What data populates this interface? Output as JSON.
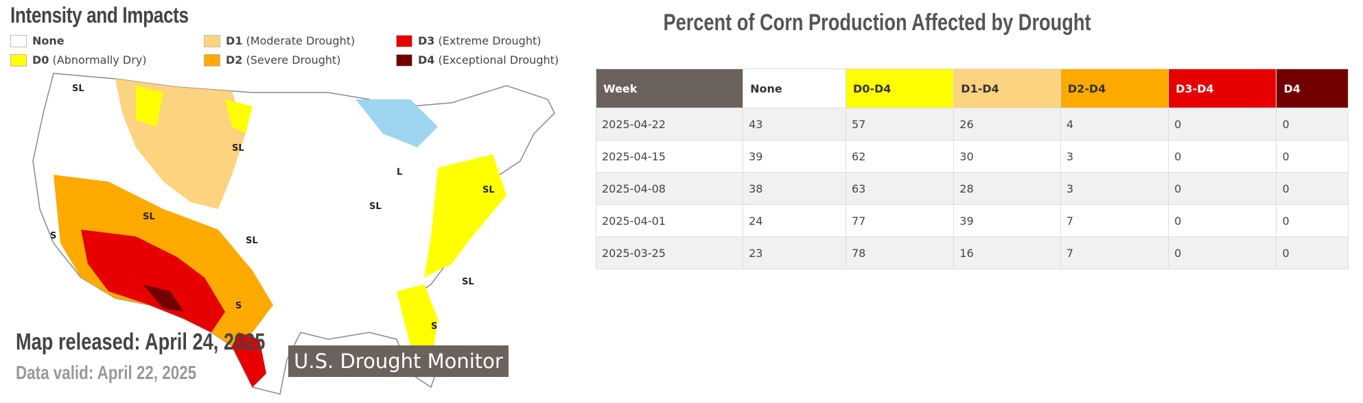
{
  "legend": {
    "title": "Intensity and Impacts",
    "items": [
      {
        "code": "None",
        "color": "#ffffff"
      },
      {
        "code": "D0",
        "desc": "(Abnormally Dry)",
        "color": "#ffff00"
      },
      {
        "code": "D1",
        "desc": "(Moderate Drought)",
        "color": "#fcd37f"
      },
      {
        "code": "D2",
        "desc": "(Severe Drought)",
        "color": "#ffaa00"
      },
      {
        "code": "D3",
        "desc": "(Extreme Drought)",
        "color": "#e60000"
      },
      {
        "code": "D4",
        "desc": "(Exceptional Drought)",
        "color": "#730000"
      }
    ]
  },
  "map": {
    "released": "Map released: April 24, 2025",
    "valid": "Data valid: April 22, 2025",
    "brand": "U.S. Drought Monitor",
    "labels": [
      "SL",
      "SL",
      "SL",
      "SL",
      "S",
      "L",
      "SL",
      "SL",
      "S",
      "SL",
      "S"
    ]
  },
  "table": {
    "title": "Percent of Corn Production Affected by Drought",
    "header": [
      "Week",
      "None",
      "D0-D4",
      "D1-D4",
      "D2-D4",
      "D3-D4",
      "D4"
    ],
    "header_colors": [
      "#6b625d",
      "#ffffff",
      "#ffff00",
      "#fcd37f",
      "#ffaa00",
      "#e60000",
      "#730000"
    ],
    "header_text_colors": [
      "#ffffff",
      "#333333",
      "#333333",
      "#333333",
      "#333333",
      "#ffffff",
      "#ffffff"
    ],
    "rows": [
      [
        "2025-04-22",
        43,
        57,
        26,
        4,
        0,
        0
      ],
      [
        "2025-04-15",
        39,
        62,
        30,
        3,
        0,
        0
      ],
      [
        "2025-04-08",
        38,
        63,
        28,
        3,
        0,
        0
      ],
      [
        "2025-04-01",
        24,
        77,
        39,
        7,
        0,
        0
      ],
      [
        "2025-03-25",
        23,
        78,
        16,
        7,
        0,
        0
      ]
    ]
  }
}
